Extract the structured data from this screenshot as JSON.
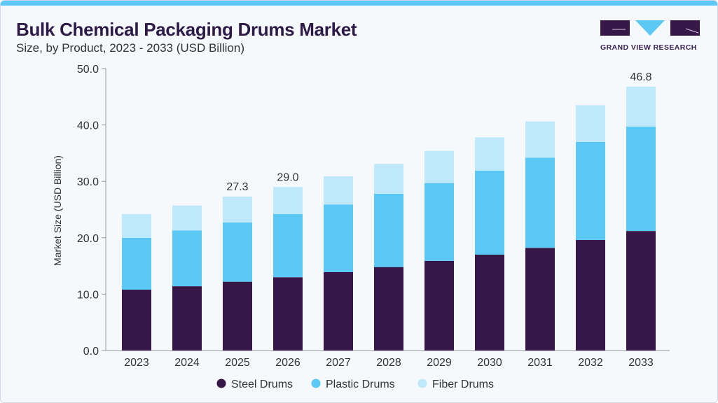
{
  "header": {
    "title": "Bulk Chemical Packaging Drums Market",
    "subtitle": "Size, by Product, 2023 - 2033 (USD Billion)"
  },
  "logo": {
    "text": "GRAND VIEW RESEARCH",
    "colors": {
      "dark": "#371747",
      "light": "#5bc8f5"
    }
  },
  "chart_data": {
    "type": "bar",
    "stacked": true,
    "title": "Bulk Chemical Packaging Drums Market",
    "subtitle": "Size, by Product, 2023 - 2033 (USD Billion)",
    "xlabel": "",
    "ylabel": "Market Size (USD Billion)",
    "ylim": [
      0,
      50
    ],
    "yticks": [
      "0.0",
      "10.0",
      "20.0",
      "30.0",
      "40.0",
      "50.0"
    ],
    "grid": false,
    "legend": "bottom",
    "categories": [
      "2023",
      "2024",
      "2025",
      "2026",
      "2027",
      "2028",
      "2029",
      "2030",
      "2031",
      "2032",
      "2033"
    ],
    "series": [
      {
        "name": "Steel Drums",
        "color": "#371747",
        "values": [
          10.8,
          11.4,
          12.2,
          13.0,
          13.9,
          14.8,
          15.9,
          17.0,
          18.2,
          19.6,
          21.2
        ]
      },
      {
        "name": "Plastic Drums",
        "color": "#5bc8f5",
        "values": [
          9.2,
          9.9,
          10.5,
          11.2,
          12.0,
          13.0,
          13.8,
          14.9,
          16.0,
          17.4,
          18.5
        ]
      },
      {
        "name": "Fiber Drums",
        "color": "#bfe8fa",
        "values": [
          4.2,
          4.4,
          4.6,
          4.8,
          5.0,
          5.3,
          5.7,
          5.9,
          6.4,
          6.5,
          7.1
        ]
      }
    ],
    "data_labels": {
      "2025": "27.3",
      "2026": "29.0",
      "2033": "46.8"
    }
  }
}
